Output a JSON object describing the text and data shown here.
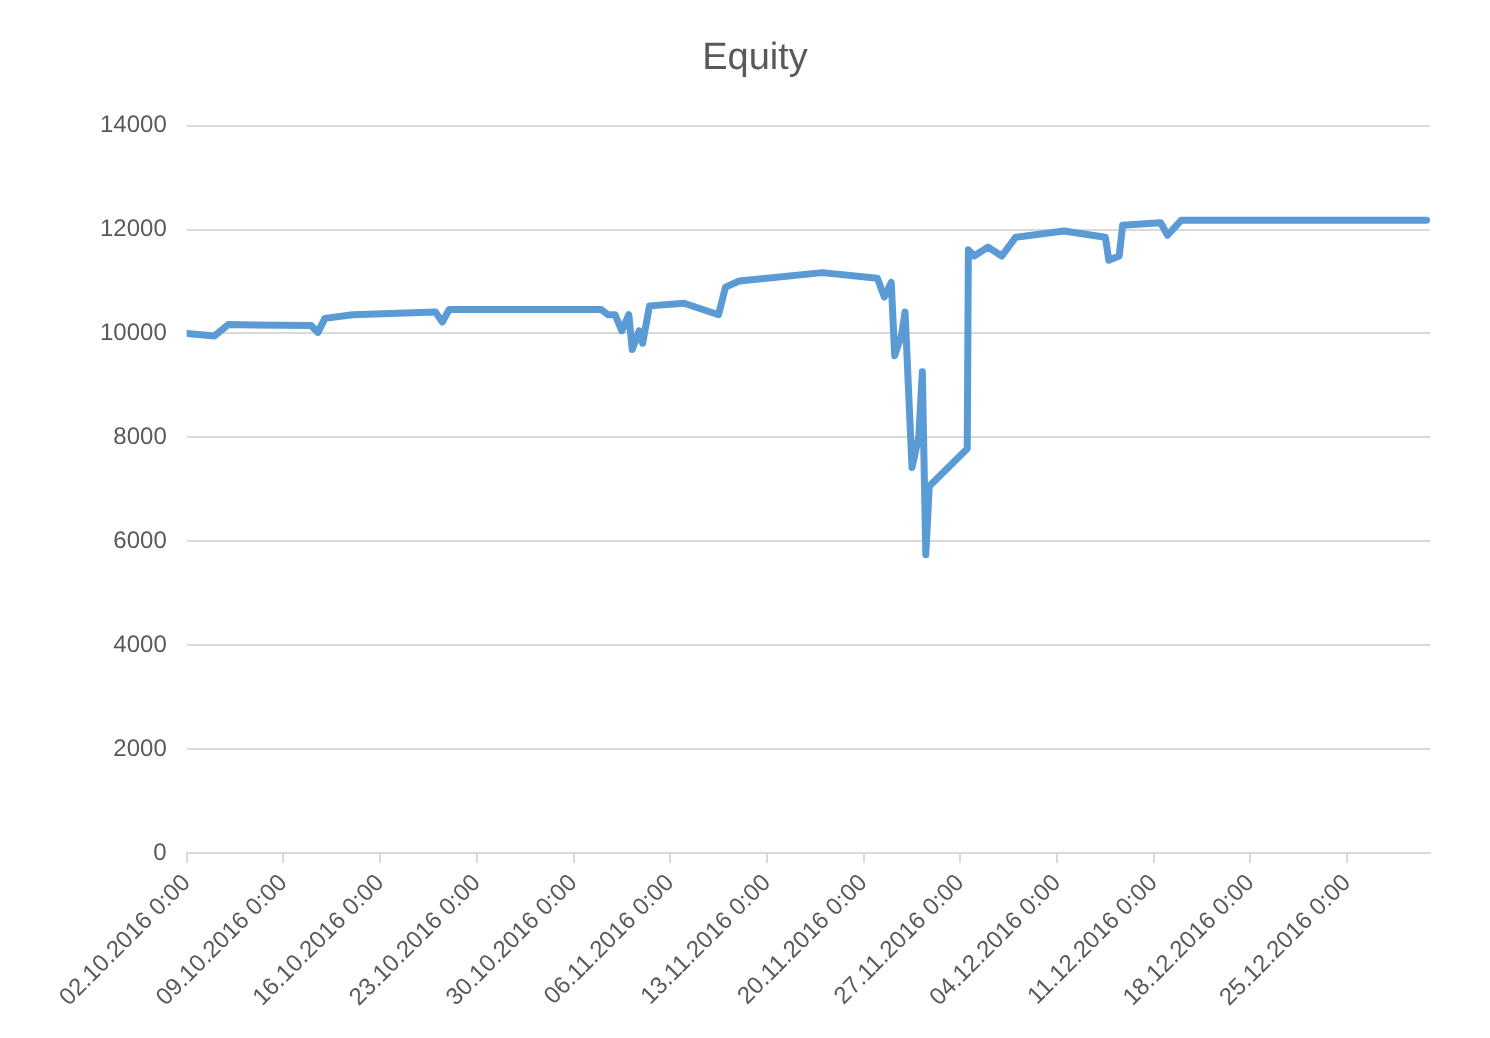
{
  "chart_data": {
    "type": "line",
    "title": "Equity",
    "grid": "y",
    "legend": false,
    "marker": "none",
    "xlim": [
      "2016-10-02",
      "2016-12-31"
    ],
    "xticks": [
      {
        "value": "2016-10-02",
        "label": "02.10.2016 0:00"
      },
      {
        "value": "2016-10-09",
        "label": "09.10.2016 0:00"
      },
      {
        "value": "2016-10-16",
        "label": "16.10.2016 0:00"
      },
      {
        "value": "2016-10-23",
        "label": "23.10.2016 0:00"
      },
      {
        "value": "2016-10-30",
        "label": "30.10.2016 0:00"
      },
      {
        "value": "2016-11-06",
        "label": "06.11.2016 0:00"
      },
      {
        "value": "2016-11-13",
        "label": "13.11.2016 0:00"
      },
      {
        "value": "2016-11-20",
        "label": "20.11.2016 0:00"
      },
      {
        "value": "2016-11-27",
        "label": "27.11.2016 0:00"
      },
      {
        "value": "2016-12-04",
        "label": "04.12.2016 0:00"
      },
      {
        "value": "2016-12-11",
        "label": "11.12.2016 0:00"
      },
      {
        "value": "2016-12-18",
        "label": "18.12.2016 0:00"
      },
      {
        "value": "2016-12-25",
        "label": "25.12.2016 0:00"
      }
    ],
    "ylim": [
      0,
      14000
    ],
    "yticks": [
      0,
      2000,
      4000,
      6000,
      8000,
      10000,
      12000,
      14000
    ],
    "x": [
      "2016-10-02",
      "2016-10-04",
      "2016-10-05",
      "2016-10-11",
      "2016-10-11T12:00",
      "2016-10-12",
      "2016-10-14",
      "2016-10-20",
      "2016-10-20T12:00",
      "2016-10-21",
      "2016-11-01",
      "2016-11-01T12:00",
      "2016-11-02",
      "2016-11-02T12:00",
      "2016-11-03",
      "2016-11-03T06:00",
      "2016-11-03T18:00",
      "2016-11-04",
      "2016-11-04T12:00",
      "2016-11-07",
      "2016-11-09T12:00",
      "2016-11-10",
      "2016-11-11",
      "2016-11-17",
      "2016-11-21",
      "2016-11-21T12:00",
      "2016-11-22",
      "2016-11-22T06:00",
      "2016-11-22T18:00",
      "2016-11-23",
      "2016-11-23T12:00",
      "2016-11-24",
      "2016-11-24T06:00",
      "2016-11-24T12:00",
      "2016-11-24T18:00",
      "2016-11-27T12:00",
      "2016-11-27T14:00",
      "2016-11-28",
      "2016-11-29",
      "2016-11-30",
      "2016-12-01",
      "2016-12-04T12:00",
      "2016-12-07T12:00",
      "2016-12-07T18:00",
      "2016-12-08T12:00",
      "2016-12-08T18:00",
      "2016-12-11T12:00",
      "2016-12-12",
      "2016-12-13",
      "2016-12-30T18:00"
    ],
    "series": [
      {
        "color": "#5b9bd5",
        "values": [
          10000,
          9950,
          10170,
          10150,
          10020,
          10290,
          10360,
          10410,
          10220,
          10460,
          10460,
          10360,
          10360,
          10050,
          10360,
          9690,
          10050,
          9810,
          10530,
          10580,
          10360,
          10890,
          11010,
          11170,
          11060,
          10700,
          10980,
          9570,
          9980,
          10410,
          7420,
          8020,
          9260,
          5740,
          7060,
          7780,
          11610,
          11490,
          11660,
          11490,
          11850,
          11970,
          11850,
          11410,
          11490,
          12080,
          12130,
          11890,
          12180,
          12180
        ]
      }
    ]
  }
}
